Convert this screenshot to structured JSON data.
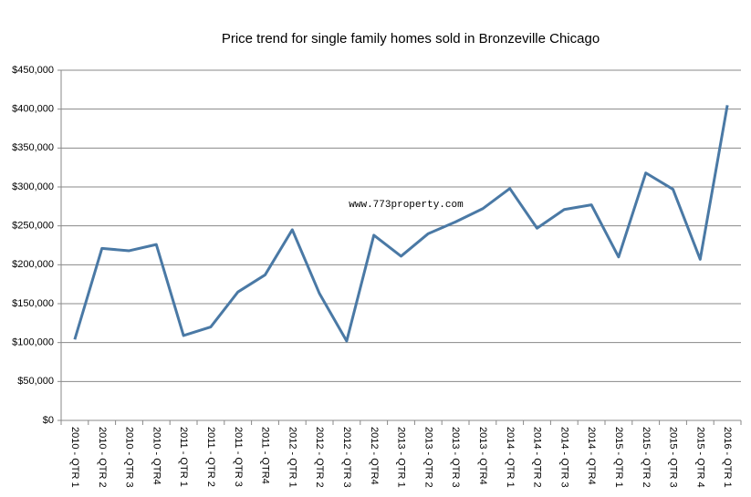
{
  "chart_data": {
    "type": "line",
    "title": "Price trend for single family homes sold in  Bronzeville Chicago",
    "annotation": "www.773property.com",
    "categories": [
      "2010 - QTR 1",
      "2010 - QTR 2",
      "2010 - QTR 3",
      "2010 - QTR4",
      "2011 - QTR 1",
      "2011 - QTR 2",
      "2011 - QTR 3",
      "2011 - QTR4",
      "2012 - QTR 1",
      "2012 - QTR 2",
      "2012 - QTR 3",
      "2012 - QTR4",
      "2013 - QTR 1",
      "2013 - QTR 2",
      "2013 - QTR 3",
      "2013 - QTR4",
      "2014 - QTR 1",
      "2014 - QTR 2",
      "2014 - QTR 3",
      "2014 - QTR4",
      "2015 - QTR 1",
      "2015 - QTR 2",
      "2015 - QTR 3",
      "2015 - QTR 4",
      "2016 - QTR 1"
    ],
    "values": [
      104000,
      221000,
      218000,
      226000,
      109000,
      120000,
      165000,
      187000,
      245000,
      163000,
      102000,
      238000,
      211000,
      240000,
      255000,
      272000,
      298000,
      247000,
      271000,
      277000,
      210000,
      318000,
      297000,
      207000,
      405000
    ],
    "color": "#4a79a5",
    "ylim": [
      0,
      450000
    ],
    "yticks": [
      {
        "value": 0,
        "label": "$0"
      },
      {
        "value": 50000,
        "label": "$50,000"
      },
      {
        "value": 100000,
        "label": "$100,000"
      },
      {
        "value": 150000,
        "label": "$150,000"
      },
      {
        "value": 200000,
        "label": "$200,000"
      },
      {
        "value": 250000,
        "label": "$250,000"
      },
      {
        "value": 300000,
        "label": "$300,000"
      },
      {
        "value": 350000,
        "label": "$350,000"
      },
      {
        "value": 400000,
        "label": "$400,000"
      },
      {
        "value": 450000,
        "label": "$450,000"
      }
    ],
    "grid": true
  }
}
